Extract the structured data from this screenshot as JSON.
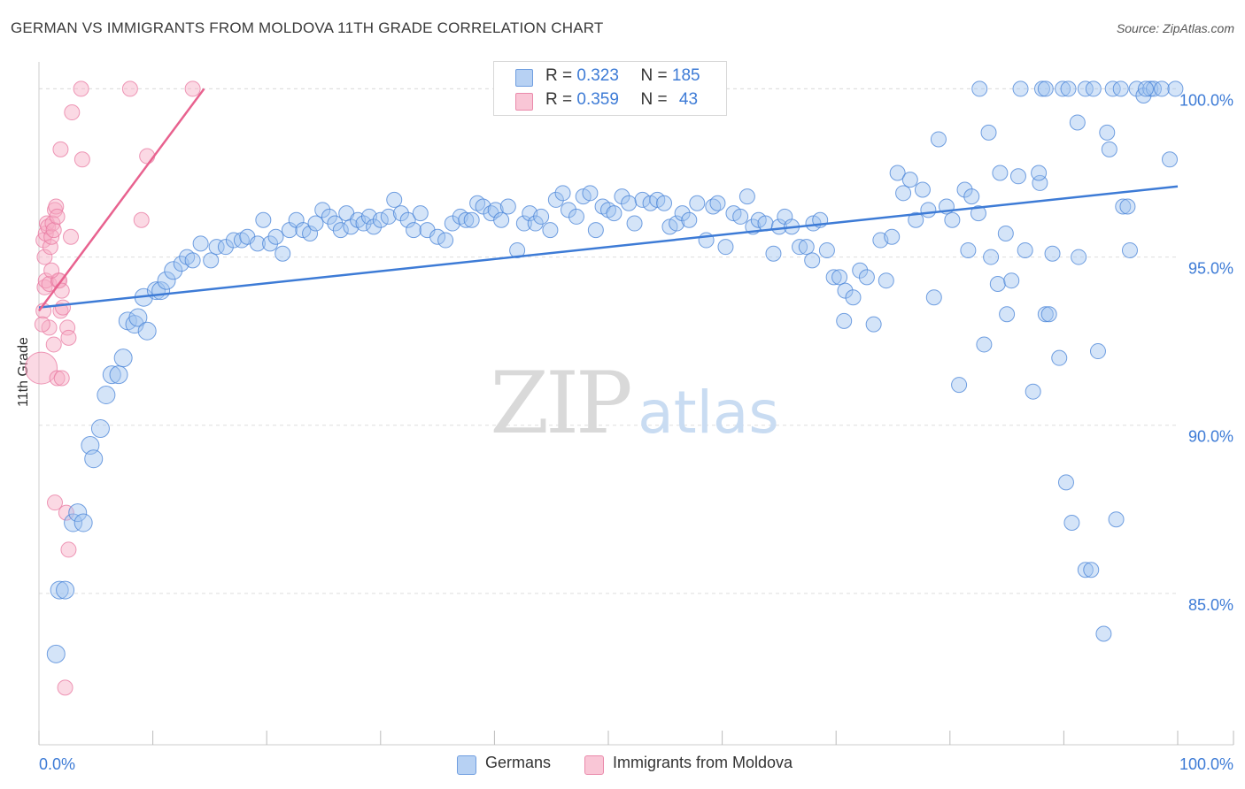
{
  "title": "GERMAN VS IMMIGRANTS FROM MOLDOVA 11TH GRADE CORRELATION CHART",
  "source": "Source: ZipAtlas.com",
  "watermark": {
    "zip": "ZIP",
    "atlas": "atlas"
  },
  "colors": {
    "blue": "#3d7bd6",
    "blue_fill": "#a9c8f0",
    "pink": "#e8628f",
    "pink_fill": "#f6b8cb",
    "grid": "#dddddd",
    "axis_text": "#3d7bd6"
  },
  "legend": {
    "rows": [
      {
        "r_label": "R =",
        "r_value": "0.323",
        "n_label": "N =",
        "n_value": "185"
      },
      {
        "r_label": "R =",
        "r_value": "0.359",
        "n_label": "N =",
        "n_value": "43"
      }
    ],
    "bottom": [
      "Germans",
      "Immigrants from Moldova"
    ]
  },
  "chart_data": {
    "type": "scatter",
    "title": "GERMAN VS IMMIGRANTS FROM MOLDOVA 11TH GRADE CORRELATION CHART",
    "xlabel": "",
    "ylabel": "11th Grade",
    "xlim": [
      0,
      100
    ],
    "ylim": [
      80.5,
      100.8
    ],
    "x_tick_labels": [
      "0.0%",
      "100.0%"
    ],
    "y_ticks": [
      85,
      90,
      95,
      100
    ],
    "y_tick_labels": [
      "85.0%",
      "90.0%",
      "95.0%",
      "100.0%"
    ],
    "grid": true,
    "legend_placement": "top-center",
    "series": [
      {
        "name": "Germans",
        "color": "#3d7bd6",
        "trend": {
          "x": [
            0,
            100
          ],
          "y": [
            93.5,
            97.1
          ]
        },
        "points": [
          [
            1.5,
            83.2
          ],
          [
            1.8,
            85.1
          ],
          [
            2.3,
            85.1
          ],
          [
            3.0,
            87.1
          ],
          [
            3.4,
            87.4
          ],
          [
            3.9,
            87.1
          ],
          [
            4.5,
            89.4
          ],
          [
            4.8,
            89.0
          ],
          [
            5.4,
            89.9
          ],
          [
            5.9,
            90.9
          ],
          [
            6.4,
            91.5
          ],
          [
            7.0,
            91.5
          ],
          [
            7.4,
            92.0
          ],
          [
            7.8,
            93.1
          ],
          [
            8.4,
            93.0
          ],
          [
            8.7,
            93.2
          ],
          [
            9.5,
            92.8
          ],
          [
            9.2,
            93.8
          ],
          [
            10.3,
            94.0
          ],
          [
            10.7,
            94.0
          ],
          [
            11.2,
            94.3
          ],
          [
            11.8,
            94.6
          ],
          [
            12.5,
            94.8
          ],
          [
            13.0,
            95.0
          ],
          [
            13.5,
            94.9
          ],
          [
            14.2,
            95.4
          ],
          [
            15.1,
            94.9
          ],
          [
            15.6,
            95.3
          ],
          [
            16.4,
            95.3
          ],
          [
            17.1,
            95.5
          ],
          [
            17.8,
            95.5
          ],
          [
            18.3,
            95.6
          ],
          [
            19.2,
            95.4
          ],
          [
            19.7,
            96.1
          ],
          [
            20.3,
            95.4
          ],
          [
            20.8,
            95.6
          ],
          [
            21.4,
            95.1
          ],
          [
            22.0,
            95.8
          ],
          [
            22.6,
            96.1
          ],
          [
            23.2,
            95.8
          ],
          [
            23.8,
            95.7
          ],
          [
            24.3,
            96.0
          ],
          [
            24.9,
            96.4
          ],
          [
            25.5,
            96.2
          ],
          [
            26.0,
            96.0
          ],
          [
            26.5,
            95.8
          ],
          [
            27.0,
            96.3
          ],
          [
            27.4,
            95.9
          ],
          [
            28.0,
            96.1
          ],
          [
            28.5,
            96.0
          ],
          [
            29.0,
            96.2
          ],
          [
            29.4,
            95.9
          ],
          [
            30.0,
            96.1
          ],
          [
            30.7,
            96.2
          ],
          [
            31.2,
            96.7
          ],
          [
            31.8,
            96.3
          ],
          [
            32.4,
            96.1
          ],
          [
            32.9,
            95.8
          ],
          [
            33.5,
            96.3
          ],
          [
            34.1,
            95.8
          ],
          [
            35.0,
            95.6
          ],
          [
            35.7,
            95.5
          ],
          [
            36.3,
            96.0
          ],
          [
            37.0,
            96.2
          ],
          [
            37.5,
            96.1
          ],
          [
            38.0,
            96.1
          ],
          [
            38.5,
            96.6
          ],
          [
            39.0,
            96.5
          ],
          [
            39.7,
            96.3
          ],
          [
            40.1,
            96.4
          ],
          [
            40.6,
            96.1
          ],
          [
            41.2,
            96.5
          ],
          [
            42.0,
            95.2
          ],
          [
            42.6,
            96.0
          ],
          [
            43.1,
            96.3
          ],
          [
            43.6,
            96.0
          ],
          [
            44.1,
            96.2
          ],
          [
            44.9,
            95.8
          ],
          [
            45.4,
            96.7
          ],
          [
            46.0,
            96.9
          ],
          [
            46.5,
            96.4
          ],
          [
            47.2,
            96.2
          ],
          [
            47.8,
            96.8
          ],
          [
            48.4,
            96.9
          ],
          [
            48.9,
            95.8
          ],
          [
            49.5,
            96.5
          ],
          [
            50.0,
            96.4
          ],
          [
            50.5,
            96.3
          ],
          [
            51.2,
            96.8
          ],
          [
            51.8,
            96.6
          ],
          [
            52.3,
            96.0
          ],
          [
            53.0,
            96.7
          ],
          [
            53.7,
            96.6
          ],
          [
            54.3,
            96.7
          ],
          [
            54.9,
            96.6
          ],
          [
            55.4,
            95.9
          ],
          [
            56.0,
            96.0
          ],
          [
            56.5,
            96.3
          ],
          [
            57.1,
            96.1
          ],
          [
            57.8,
            96.6
          ],
          [
            58.6,
            95.5
          ],
          [
            59.2,
            96.5
          ],
          [
            59.6,
            96.6
          ],
          [
            60.3,
            95.3
          ],
          [
            61.0,
            96.3
          ],
          [
            61.6,
            96.2
          ],
          [
            62.2,
            96.8
          ],
          [
            62.7,
            95.9
          ],
          [
            63.2,
            96.1
          ],
          [
            63.8,
            96.0
          ],
          [
            64.5,
            95.1
          ],
          [
            65.0,
            95.9
          ],
          [
            65.5,
            96.2
          ],
          [
            66.1,
            95.9
          ],
          [
            66.8,
            95.3
          ],
          [
            67.4,
            95.3
          ],
          [
            68.0,
            96.0
          ],
          [
            68.6,
            96.1
          ],
          [
            69.2,
            95.2
          ],
          [
            69.8,
            94.4
          ],
          [
            70.3,
            94.4
          ],
          [
            70.8,
            94.0
          ],
          [
            71.5,
            93.8
          ],
          [
            72.1,
            94.6
          ],
          [
            72.7,
            94.4
          ],
          [
            73.3,
            93.0
          ],
          [
            73.9,
            95.5
          ],
          [
            74.4,
            94.3
          ],
          [
            74.9,
            95.6
          ],
          [
            75.4,
            97.5
          ],
          [
            75.9,
            96.9
          ],
          [
            76.5,
            97.3
          ],
          [
            77.0,
            96.1
          ],
          [
            77.6,
            97.0
          ],
          [
            78.1,
            96.4
          ],
          [
            78.6,
            93.8
          ],
          [
            79.0,
            98.5
          ],
          [
            79.7,
            96.5
          ],
          [
            80.2,
            96.1
          ],
          [
            80.8,
            91.2
          ],
          [
            81.3,
            97.0
          ],
          [
            81.9,
            96.8
          ],
          [
            82.5,
            96.3
          ],
          [
            83.0,
            92.4
          ],
          [
            83.6,
            95.0
          ],
          [
            84.2,
            94.2
          ],
          [
            84.9,
            95.7
          ],
          [
            85.4,
            94.3
          ],
          [
            86.0,
            97.4
          ],
          [
            86.6,
            95.2
          ],
          [
            87.3,
            91.0
          ],
          [
            87.9,
            97.2
          ],
          [
            88.4,
            93.3
          ],
          [
            89.0,
            95.1
          ],
          [
            89.6,
            92.0
          ],
          [
            90.2,
            88.3
          ],
          [
            90.7,
            87.1
          ],
          [
            91.3,
            95.0
          ],
          [
            91.9,
            85.7
          ],
          [
            92.4,
            85.7
          ],
          [
            93.0,
            92.2
          ],
          [
            93.5,
            83.8
          ],
          [
            94.0,
            98.2
          ],
          [
            94.6,
            87.2
          ],
          [
            95.2,
            96.5
          ],
          [
            95.8,
            95.2
          ],
          [
            96.4,
            100.0
          ],
          [
            97.0,
            99.8
          ],
          [
            97.6,
            100.0
          ],
          [
            82.6,
            100.0
          ],
          [
            86.2,
            100.0
          ],
          [
            88.1,
            100.0
          ],
          [
            88.4,
            100.0
          ],
          [
            89.9,
            100.0
          ],
          [
            90.4,
            100.0
          ],
          [
            91.2,
            99.0
          ],
          [
            91.9,
            100.0
          ],
          [
            92.6,
            100.0
          ],
          [
            93.8,
            98.7
          ],
          [
            94.3,
            100.0
          ],
          [
            95.0,
            100.0
          ],
          [
            97.9,
            100.0
          ],
          [
            98.6,
            100.0
          ],
          [
            99.3,
            97.9
          ],
          [
            99.8,
            100.0
          ],
          [
            97.2,
            100.0
          ],
          [
            95.6,
            96.5
          ],
          [
            88.7,
            93.3
          ],
          [
            85.0,
            93.3
          ],
          [
            87.8,
            97.5
          ],
          [
            84.4,
            97.5
          ],
          [
            83.4,
            98.7
          ],
          [
            81.6,
            95.2
          ],
          [
            70.7,
            93.1
          ],
          [
            67.9,
            94.9
          ]
        ]
      },
      {
        "name": "Immigrants from Moldova",
        "color": "#e8628f",
        "trend": {
          "x": [
            0,
            14.5
          ],
          "y": [
            93.4,
            100.0
          ]
        },
        "points": [
          [
            0.2,
            91.7
          ],
          [
            0.4,
            93.4
          ],
          [
            0.5,
            94.1
          ],
          [
            0.6,
            94.3
          ],
          [
            0.5,
            95.0
          ],
          [
            0.4,
            95.5
          ],
          [
            0.6,
            95.7
          ],
          [
            0.7,
            96.0
          ],
          [
            0.8,
            95.9
          ],
          [
            0.9,
            94.2
          ],
          [
            1.0,
            95.3
          ],
          [
            1.1,
            95.6
          ],
          [
            1.2,
            96.0
          ],
          [
            1.3,
            95.8
          ],
          [
            1.4,
            96.4
          ],
          [
            1.5,
            96.5
          ],
          [
            1.6,
            96.2
          ],
          [
            1.7,
            94.3
          ],
          [
            1.8,
            94.3
          ],
          [
            1.9,
            93.4
          ],
          [
            2.0,
            94.0
          ],
          [
            2.1,
            93.5
          ],
          [
            0.9,
            92.9
          ],
          [
            1.3,
            92.4
          ],
          [
            1.6,
            91.4
          ],
          [
            2.0,
            91.4
          ],
          [
            2.5,
            92.9
          ],
          [
            2.6,
            92.6
          ],
          [
            1.9,
            98.2
          ],
          [
            2.9,
            99.3
          ],
          [
            3.8,
            97.9
          ],
          [
            3.7,
            100.0
          ],
          [
            8.0,
            100.0
          ],
          [
            13.5,
            100.0
          ],
          [
            9.5,
            98.0
          ],
          [
            9.0,
            96.1
          ],
          [
            2.8,
            95.6
          ],
          [
            1.4,
            87.7
          ],
          [
            2.4,
            87.4
          ],
          [
            2.6,
            86.3
          ],
          [
            2.3,
            82.2
          ],
          [
            1.1,
            94.6
          ],
          [
            0.3,
            93.0
          ]
        ]
      }
    ]
  }
}
